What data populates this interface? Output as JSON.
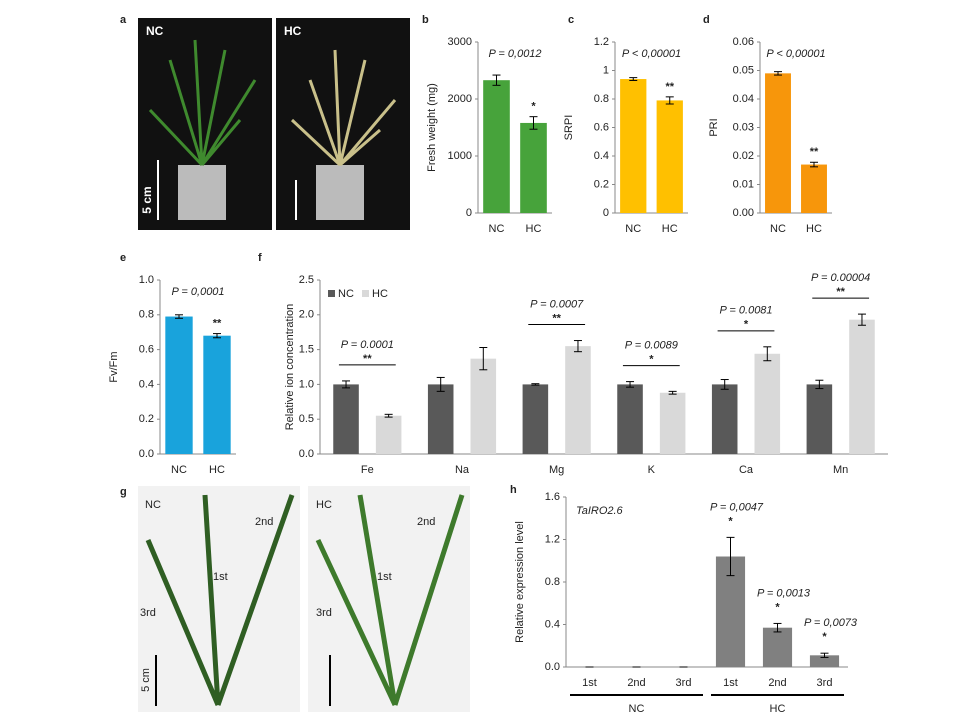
{
  "photos": [
    {
      "panel_label": "a",
      "labels": [
        "NC",
        "HC"
      ],
      "scale": "5 cm"
    },
    {
      "panel_label": "g",
      "labels": [
        "NC",
        "HC"
      ],
      "scale": "5 cm",
      "nc_leaves": [
        "2nd",
        "1st",
        "3rd"
      ],
      "hc_leaves": [
        "2nd",
        "1st",
        "3rd"
      ]
    }
  ],
  "chart_data": [
    {
      "type": "bar",
      "panel_label": "b",
      "ylabel": "Fresh weight (mg)",
      "categories": [
        "NC",
        "HC"
      ],
      "values": [
        2330,
        1580
      ],
      "errors": [
        90,
        110
      ],
      "color": "#47a33b",
      "ylim": [
        0,
        3000
      ],
      "yticks": [
        0,
        1000,
        2000,
        3000
      ],
      "p_label": "P = 0,0012",
      "significance": [
        null,
        "*"
      ]
    },
    {
      "type": "bar",
      "panel_label": "c",
      "ylabel": "SRPI",
      "categories": [
        "NC",
        "HC"
      ],
      "values": [
        0.94,
        0.79
      ],
      "errors": [
        0.01,
        0.025
      ],
      "color": "#ffc000",
      "ylim": [
        0,
        1.2
      ],
      "yticks": [
        0,
        0.2,
        0.4,
        0.6,
        0.8,
        1,
        1.2
      ],
      "p_label": "P < 0,00001",
      "significance": [
        null,
        "**"
      ]
    },
    {
      "type": "bar",
      "panel_label": "d",
      "ylabel": "PRI",
      "categories": [
        "NC",
        "HC"
      ],
      "values": [
        0.049,
        0.017
      ],
      "errors": [
        0.0006,
        0.0008
      ],
      "color": "#f7960b",
      "ylim": [
        0,
        0.06
      ],
      "yticks": [
        {
          "value": 0,
          "label": "0.00"
        },
        {
          "value": 0.01,
          "label": "0.01"
        },
        {
          "value": 0.02,
          "label": "0.02"
        },
        {
          "value": 0.03,
          "label": "0.03"
        },
        {
          "value": 0.04,
          "label": "0.04"
        },
        {
          "value": 0.05,
          "label": "0.05"
        },
        {
          "value": 0.06,
          "label": "0.06"
        }
      ],
      "p_label": "P < 0,00001",
      "significance": [
        null,
        "**"
      ]
    },
    {
      "type": "bar",
      "panel_label": "e",
      "ylabel": "Fv/Fm",
      "categories": [
        "NC",
        "HC"
      ],
      "values": [
        0.79,
        0.68
      ],
      "errors": [
        0.01,
        0.012
      ],
      "color": "#19a3dc",
      "ylim": [
        0,
        1.0
      ],
      "yticks": [
        {
          "value": 0,
          "label": "0.0"
        },
        {
          "value": 0.2,
          "label": "0.2"
        },
        {
          "value": 0.4,
          "label": "0.4"
        },
        {
          "value": 0.6,
          "label": "0.6"
        },
        {
          "value": 0.8,
          "label": "0.8"
        },
        {
          "value": 1.0,
          "label": "1.0"
        }
      ],
      "p_label": "P = 0,0001",
      "significance": [
        null,
        "**"
      ]
    },
    {
      "type": "bar",
      "panel_label": "f",
      "ylabel": "Relative ion concentration",
      "categories": [
        "Fe",
        "Na",
        "Mg",
        "K",
        "Ca",
        "Mn"
      ],
      "series": [
        {
          "name": "NC",
          "color": "#595959",
          "values": [
            1.0,
            1.0,
            1.0,
            1.0,
            1.0,
            1.0
          ],
          "errors": [
            0.05,
            0.1,
            0.01,
            0.04,
            0.07,
            0.06
          ]
        },
        {
          "name": "HC",
          "color": "#d9d9d9",
          "values": [
            0.55,
            1.37,
            1.55,
            0.88,
            1.44,
            1.93
          ],
          "errors": [
            0.02,
            0.16,
            0.08,
            0.02,
            0.1,
            0.08
          ]
        }
      ],
      "ylim": [
        0,
        2.5
      ],
      "yticks": [
        {
          "value": 0,
          "label": "0.0"
        },
        {
          "value": 0.5,
          "label": "0.5"
        },
        {
          "value": 1.0,
          "label": "1.0"
        },
        {
          "value": 1.5,
          "label": "1.5"
        },
        {
          "value": 2.0,
          "label": "2.0"
        },
        {
          "value": 2.5,
          "label": "2.5"
        }
      ],
      "p_labels": [
        "P = 0.0001",
        null,
        "P = 0.0007",
        "P = 0.0089",
        "P = 0.0081",
        "P = 0.00004"
      ],
      "significance": [
        "**",
        null,
        "**",
        "*",
        "*",
        "**"
      ],
      "legend": "top-left"
    },
    {
      "type": "bar",
      "panel_label": "h",
      "title": "TaIRO2.6",
      "ylabel": "Relative expression level",
      "categories": [
        "1st",
        "2nd",
        "3rd",
        "1st",
        "2nd",
        "3rd"
      ],
      "groups": [
        "NC",
        "HC"
      ],
      "values": [
        0,
        0,
        0,
        1.04,
        0.37,
        0.11
      ],
      "errors": [
        0,
        0,
        0,
        0.18,
        0.04,
        0.02
      ],
      "color": "#808080",
      "ylim": [
        0,
        1.6
      ],
      "yticks": [
        {
          "value": 0,
          "label": "0.0"
        },
        {
          "value": 0.4,
          "label": "0.4"
        },
        {
          "value": 0.8,
          "label": "0.8"
        },
        {
          "value": 1.2,
          "label": "1.2"
        },
        {
          "value": 1.6,
          "label": "1.6"
        }
      ],
      "p_labels": [
        null,
        null,
        null,
        "P = 0,0047",
        "P = 0,0013",
        "P = 0,0073"
      ],
      "significance": [
        null,
        null,
        null,
        "*",
        "*",
        "*"
      ]
    }
  ]
}
